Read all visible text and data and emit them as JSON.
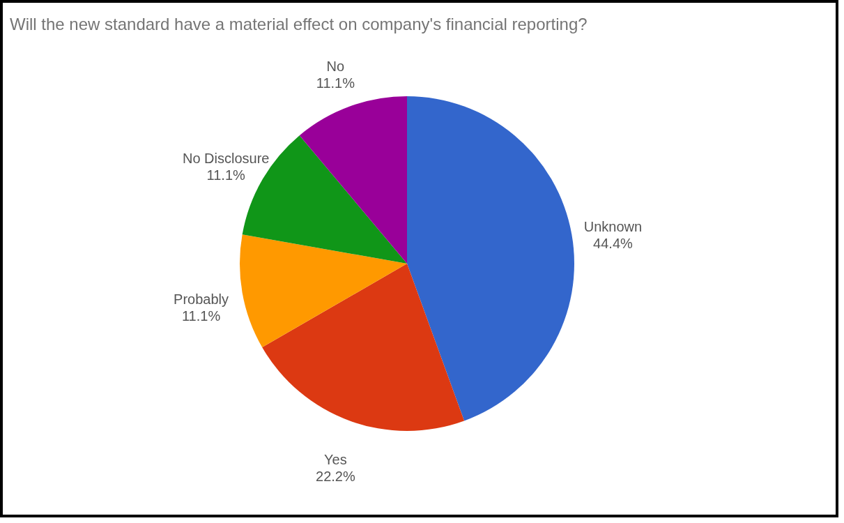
{
  "chart_data": {
    "type": "pie",
    "title": "Will the new standard have a material effect on company's financial reporting?",
    "categories": [
      "Unknown",
      "Yes",
      "Probably",
      "No Disclosure",
      "No"
    ],
    "values": [
      44.4,
      22.2,
      11.1,
      11.1,
      11.1
    ],
    "value_labels": [
      "44.4%",
      "22.2%",
      "11.1%",
      "11.1%",
      "11.1%"
    ],
    "colors": [
      "#3366cc",
      "#dc3912",
      "#ff9900",
      "#109618",
      "#990099"
    ],
    "legend": false
  }
}
